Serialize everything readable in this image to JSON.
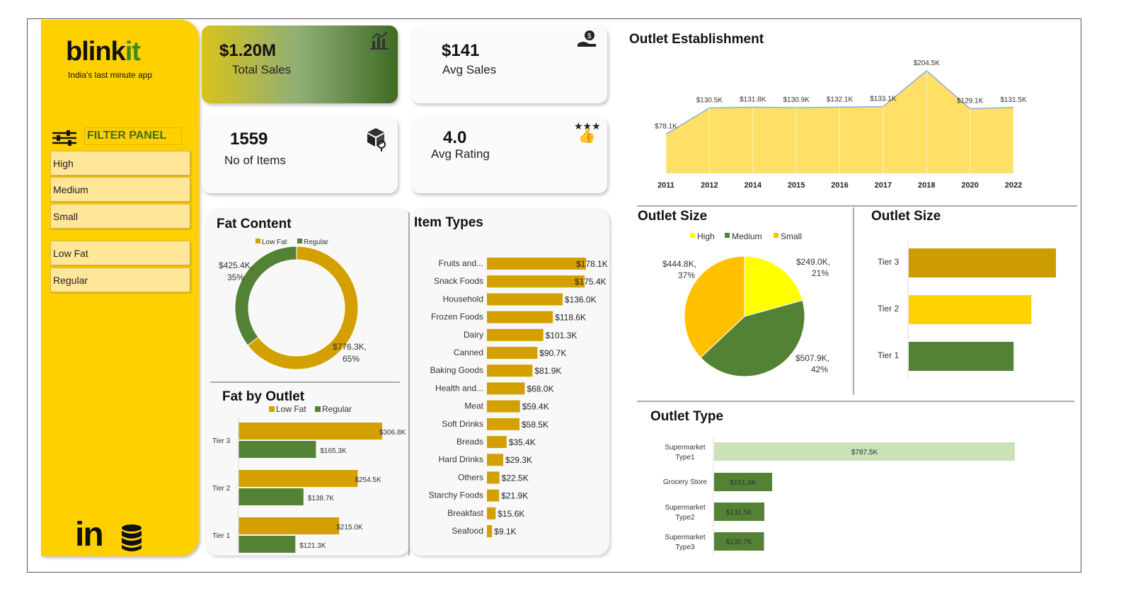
{
  "brand": {
    "name_a": "blink",
    "name_b": "it",
    "tagline": "India's last minute app"
  },
  "filter_panel": {
    "title": "FILTER PANEL",
    "outlet_size": [
      "High",
      "Medium",
      "Small"
    ],
    "fat_content": [
      "Low Fat",
      "Regular"
    ]
  },
  "kpis": [
    {
      "value": "$1.20M",
      "label": "Total Sales",
      "icon": "bar-chart-icon"
    },
    {
      "value": "$141",
      "label": "Avg Sales",
      "icon": "money-hand-icon"
    },
    {
      "value": "1559",
      "label": "No of Items",
      "icon": "box-icon"
    },
    {
      "value": "4.0",
      "label": "Avg Rating",
      "icon": "thumbs-up-stars-icon"
    }
  ],
  "colors": {
    "yellow": "#FFD000",
    "gold": "#D4A000",
    "green": "#548235",
    "light_green": "#C9E2B8",
    "area": "#FFE066"
  },
  "chart_data": [
    {
      "id": "outlet_establishment",
      "type": "area",
      "title": "Outlet Establishment",
      "categories": [
        "2011",
        "2012",
        "2014",
        "2015",
        "2016",
        "2017",
        "2018",
        "2020",
        "2022"
      ],
      "values": [
        78.1,
        130.5,
        131.8,
        130.9,
        132.1,
        133.1,
        204.5,
        129.1,
        131.5
      ],
      "labels": [
        "$78.1K",
        "$130.5K",
        "$131.8K",
        "$130.9K",
        "$132.1K",
        "$133.1K",
        "$204.5K",
        "$129.1K",
        "$131.5K"
      ],
      "grid": false
    },
    {
      "id": "fat_content",
      "type": "pie",
      "variant": "donut",
      "title": "Fat Content",
      "categories": [
        "Low Fat",
        "Regular"
      ],
      "values": [
        776.3,
        425.4
      ],
      "percent": [
        65,
        35
      ],
      "labels": [
        "$776.3K, 65%",
        "$425.4K, 35%"
      ],
      "legend": "top"
    },
    {
      "id": "fat_by_outlet",
      "type": "bar",
      "orientation": "horizontal",
      "title": "Fat by Outlet",
      "categories": [
        "Tier 3",
        "Tier 2",
        "Tier 1"
      ],
      "series": [
        {
          "name": "Low Fat",
          "values": [
            306.8,
            254.5,
            215.0
          ],
          "labels": [
            "$306.8K",
            "$254.5K",
            "$215.0K"
          ]
        },
        {
          "name": "Regular",
          "values": [
            165.3,
            138.7,
            121.3
          ],
          "labels": [
            "$165.3K",
            "$138.7K",
            "$121.3K"
          ]
        }
      ],
      "legend": "top"
    },
    {
      "id": "item_types",
      "type": "bar",
      "orientation": "horizontal",
      "title": "Item Types",
      "categories": [
        "Fruits and...",
        "Snack Foods",
        "Household",
        "Frozen Foods",
        "Dairy",
        "Canned",
        "Baking Goods",
        "Health and...",
        "Meat",
        "Soft Drinks",
        "Breads",
        "Hard Drinks",
        "Others",
        "Starchy Foods",
        "Breakfast",
        "Seafood"
      ],
      "values": [
        178.1,
        175.4,
        136.0,
        118.6,
        101.3,
        90.7,
        81.9,
        68.0,
        59.4,
        58.5,
        35.4,
        29.3,
        22.5,
        21.9,
        15.6,
        9.1
      ],
      "labels": [
        "$178.1K",
        "$175.4K",
        "$136.0K",
        "$118.6K",
        "$101.3K",
        "$90.7K",
        "$81.9K",
        "$68.0K",
        "$59.4K",
        "$58.5K",
        "$35.4K",
        "$29.3K",
        "$22.5K",
        "$21.9K",
        "$15.6K",
        "$9.1K"
      ]
    },
    {
      "id": "outlet_size_pie",
      "type": "pie",
      "title": "Outlet Size",
      "categories": [
        "High",
        "Medium",
        "Small"
      ],
      "values": [
        249.0,
        507.9,
        444.8
      ],
      "percent": [
        21,
        42,
        37
      ],
      "labels": [
        "$249.0K,\n21%",
        "$507.9K,\n42%",
        "$444.8K,\n37%"
      ],
      "legend": "top"
    },
    {
      "id": "outlet_size_bar",
      "type": "bar",
      "orientation": "horizontal",
      "title": "Outlet Size",
      "categories": [
        "Tier 3",
        "Tier 2",
        "Tier 1"
      ],
      "values": [
        472.1,
        393.2,
        336.3
      ]
    },
    {
      "id": "outlet_type",
      "type": "bar",
      "orientation": "horizontal",
      "title": "Outlet Type",
      "categories": [
        "Supermarket Type1",
        "Grocery Store",
        "Supermarket Type2",
        "Supermarket Type3"
      ],
      "values": [
        787.5,
        151.9,
        131.5,
        130.7
      ],
      "labels": [
        "$787.5K",
        "$151.9K",
        "$131.5K",
        "$130.7K"
      ]
    }
  ]
}
